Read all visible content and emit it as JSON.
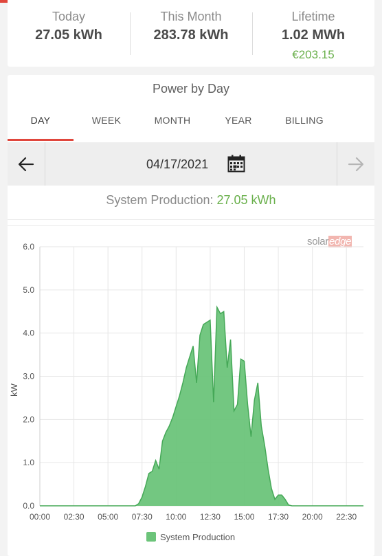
{
  "stats": {
    "today_label": "Today",
    "today_value": "27.05 kWh",
    "month_label": "This Month",
    "month_value": "283.78 kWh",
    "lifetime_label": "Lifetime",
    "lifetime_value": "1.02 MWh",
    "lifetime_revenue": "€203.15"
  },
  "card": {
    "title": "Power by Day"
  },
  "tabs": [
    {
      "label": "DAY",
      "active": true
    },
    {
      "label": "WEEK",
      "active": false
    },
    {
      "label": "MONTH",
      "active": false
    },
    {
      "label": "YEAR",
      "active": false
    },
    {
      "label": "BILLING",
      "active": false
    }
  ],
  "date_nav": {
    "date": "04/17/2021",
    "prev_icon": "arrow-left-icon",
    "next_icon": "arrow-right-icon",
    "calendar_icon": "calendar-icon"
  },
  "production": {
    "label": "System Production:",
    "value": "27.05 kWh"
  },
  "brand": {
    "solar": "solar",
    "edge": "edge"
  },
  "colors": {
    "accent": "#e0463c",
    "series": "#6cc47a",
    "series_stroke": "#45a857",
    "money": "#6ab04c"
  },
  "chart_data": {
    "type": "area",
    "ylabel": "kW",
    "xlabel": "",
    "ylim": [
      0,
      6
    ],
    "yticks": [
      "0.0",
      "1.0",
      "2.0",
      "3.0",
      "4.0",
      "5.0",
      "6.0"
    ],
    "xlim": [
      0,
      23.75
    ],
    "xticks": [
      "00:00",
      "02:30",
      "05:00",
      "07:30",
      "10:00",
      "12:30",
      "15:00",
      "17:30",
      "20:00",
      "22:30"
    ],
    "grid": true,
    "legend": "bottom",
    "series": [
      {
        "name": "System Production",
        "x": [
          0,
          7.0,
          7.25,
          7.5,
          7.75,
          8.0,
          8.25,
          8.5,
          8.75,
          9.0,
          9.25,
          9.5,
          9.75,
          10.0,
          10.25,
          10.5,
          10.75,
          11.0,
          11.25,
          11.5,
          11.75,
          12.0,
          12.25,
          12.5,
          12.75,
          13.0,
          13.25,
          13.5,
          13.75,
          14.0,
          14.25,
          14.5,
          14.75,
          15.0,
          15.25,
          15.5,
          15.75,
          16.0,
          16.25,
          16.5,
          16.75,
          17.0,
          17.25,
          17.5,
          17.75,
          18.0,
          18.25,
          18.5,
          18.75,
          19.0,
          19.25,
          23.75
        ],
        "values": [
          0,
          0,
          0.05,
          0.2,
          0.45,
          0.75,
          0.8,
          1.05,
          0.85,
          1.5,
          1.7,
          1.85,
          2.05,
          2.3,
          2.55,
          2.85,
          3.2,
          3.45,
          3.7,
          2.85,
          3.95,
          4.2,
          4.25,
          4.3,
          2.4,
          4.6,
          4.45,
          4.5,
          3.2,
          3.85,
          2.2,
          2.35,
          3.4,
          3.35,
          2.35,
          1.6,
          2.45,
          2.85,
          1.85,
          1.4,
          0.85,
          0.4,
          0.15,
          0.25,
          0.25,
          0.15,
          0.02,
          0,
          0,
          0,
          0,
          0
        ]
      }
    ]
  }
}
